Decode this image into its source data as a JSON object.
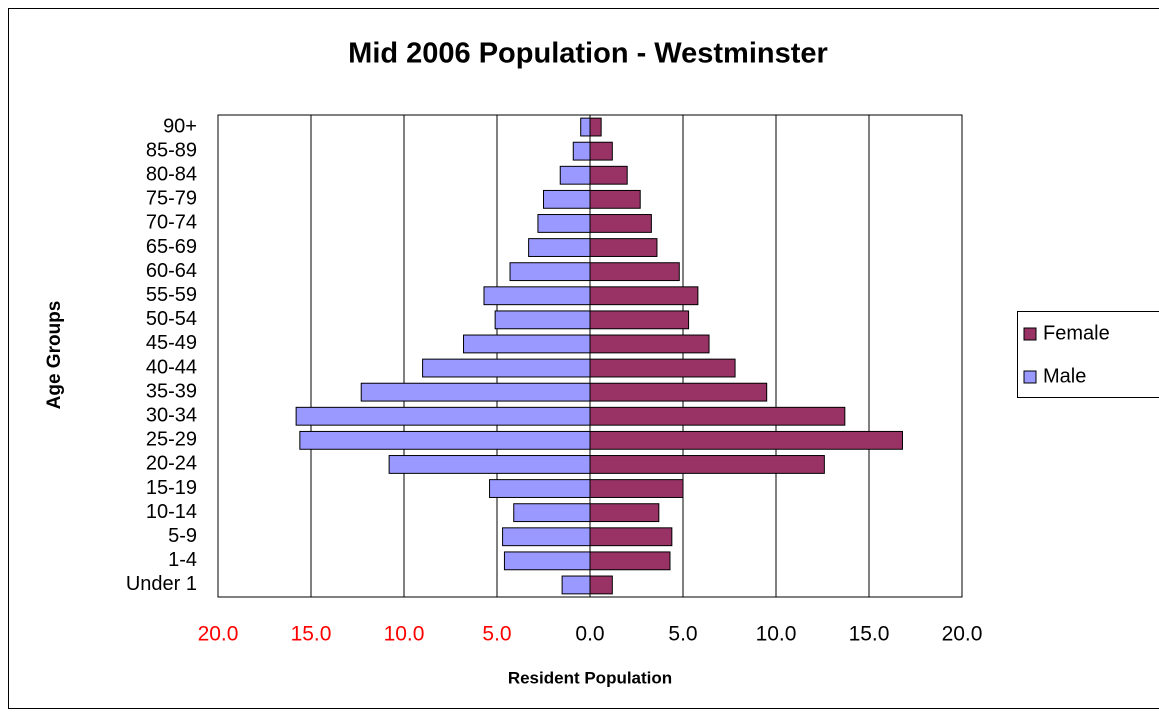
{
  "chart_data": {
    "type": "bar",
    "orientation": "horizontal",
    "title": "Mid 2006 Population - Westminster",
    "x_label": "Resident Population",
    "y_label": "Age Groups",
    "categories": [
      "Under 1",
      "1-4",
      "5-9",
      "10-14",
      "15-19",
      "20-24",
      "25-29",
      "30-34",
      "35-39",
      "40-44",
      "45-49",
      "50-54",
      "55-59",
      "60-64",
      "65-69",
      "70-74",
      "75-79",
      "80-84",
      "85-89",
      "90+"
    ],
    "series": [
      {
        "name": "Female",
        "color": "#993366",
        "values": [
          1.2,
          4.3,
          4.4,
          3.7,
          5.0,
          12.6,
          16.8,
          13.7,
          9.5,
          7.8,
          6.4,
          5.3,
          5.8,
          4.8,
          3.6,
          3.3,
          2.7,
          2.0,
          1.2,
          0.6
        ]
      },
      {
        "name": "Male",
        "color": "#9999ff",
        "values": [
          -1.5,
          -4.6,
          -4.7,
          -4.1,
          -5.4,
          -10.8,
          -15.6,
          -15.8,
          -12.3,
          -9.0,
          -6.8,
          -5.1,
          -5.7,
          -4.3,
          -3.3,
          -2.8,
          -2.5,
          -1.6,
          -0.9,
          -0.5
        ]
      }
    ],
    "xlim": [
      -20,
      20
    ],
    "xticks": [
      {
        "value": -20,
        "label": "20.0"
      },
      {
        "value": -15,
        "label": "15.0"
      },
      {
        "value": -10,
        "label": "10.0"
      },
      {
        "value": -5,
        "label": "5.0"
      },
      {
        "value": 0,
        "label": "0.0"
      },
      {
        "value": 5,
        "label": "5.0"
      },
      {
        "value": 10,
        "label": "10.0"
      },
      {
        "value": 15,
        "label": "15.0"
      },
      {
        "value": 20,
        "label": "20.0"
      }
    ],
    "negative_tick_color": "#ff0000",
    "grid": true,
    "legend_position": "right"
  }
}
